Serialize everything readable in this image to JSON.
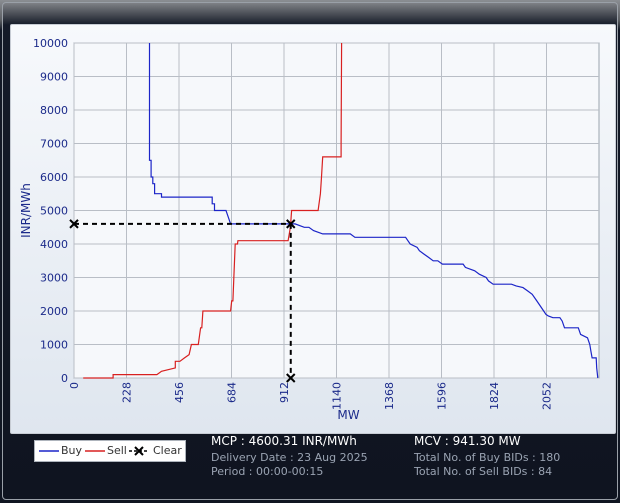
{
  "chart_data": {
    "type": "line",
    "xlabel": "MW",
    "ylabel": "INR/MWh",
    "xlim": [
      0,
      2280
    ],
    "ylim": [
      0,
      10000
    ],
    "x_ticks": [
      "0",
      "228",
      "456",
      "684",
      "912",
      "1140",
      "1368",
      "1596",
      "1824",
      "2052"
    ],
    "y_ticks": [
      "0",
      "1000",
      "2000",
      "3000",
      "4000",
      "5000",
      "6000",
      "7000",
      "8000",
      "9000",
      "10000"
    ],
    "grid": true,
    "series": [
      {
        "name": "Buy",
        "color": "#1c25c8",
        "points": [
          [
            328,
            10000
          ],
          [
            328,
            6500
          ],
          [
            335,
            6500
          ],
          [
            335,
            6000
          ],
          [
            342,
            6000
          ],
          [
            342,
            5800
          ],
          [
            350,
            5800
          ],
          [
            350,
            5500
          ],
          [
            380,
            5500
          ],
          [
            380,
            5400
          ],
          [
            480,
            5400
          ],
          [
            560,
            5400
          ],
          [
            600,
            5400
          ],
          [
            600,
            5200
          ],
          [
            610,
            5200
          ],
          [
            610,
            5000
          ],
          [
            660,
            5000
          ],
          [
            670,
            4800
          ],
          [
            680,
            4600
          ],
          [
            700,
            4600
          ],
          [
            900,
            4600
          ],
          [
            941,
            4600
          ],
          [
            960,
            4600
          ],
          [
            1000,
            4500
          ],
          [
            1020,
            4500
          ],
          [
            1040,
            4400
          ],
          [
            1080,
            4300
          ],
          [
            1200,
            4300
          ],
          [
            1220,
            4200
          ],
          [
            1360,
            4200
          ],
          [
            1440,
            4200
          ],
          [
            1450,
            4100
          ],
          [
            1460,
            4000
          ],
          [
            1490,
            3900
          ],
          [
            1500,
            3800
          ],
          [
            1520,
            3700
          ],
          [
            1540,
            3600
          ],
          [
            1560,
            3500
          ],
          [
            1580,
            3500
          ],
          [
            1600,
            3400
          ],
          [
            1690,
            3400
          ],
          [
            1700,
            3300
          ],
          [
            1740,
            3200
          ],
          [
            1760,
            3100
          ],
          [
            1790,
            3000
          ],
          [
            1800,
            2900
          ],
          [
            1820,
            2800
          ],
          [
            1900,
            2800
          ],
          [
            1920,
            2750
          ],
          [
            1950,
            2700
          ],
          [
            1970,
            2600
          ],
          [
            1990,
            2500
          ],
          [
            2010,
            2300
          ],
          [
            2030,
            2100
          ],
          [
            2050,
            1900
          ],
          [
            2060,
            1850
          ],
          [
            2080,
            1800
          ],
          [
            2110,
            1800
          ],
          [
            2120,
            1700
          ],
          [
            2130,
            1500
          ],
          [
            2190,
            1500
          ],
          [
            2200,
            1300
          ],
          [
            2230,
            1200
          ],
          [
            2240,
            1000
          ],
          [
            2245,
            800
          ],
          [
            2250,
            600
          ],
          [
            2268,
            600
          ],
          [
            2270,
            300
          ],
          [
            2275,
            0
          ]
        ]
      },
      {
        "name": "Sell",
        "color": "#d82020",
        "points": [
          [
            40,
            0
          ],
          [
            100,
            0
          ],
          [
            170,
            0
          ],
          [
            170,
            100
          ],
          [
            360,
            100
          ],
          [
            380,
            200
          ],
          [
            440,
            300
          ],
          [
            440,
            500
          ],
          [
            460,
            500
          ],
          [
            480,
            600
          ],
          [
            500,
            700
          ],
          [
            510,
            1000
          ],
          [
            540,
            1000
          ],
          [
            550,
            1500
          ],
          [
            555,
            1500
          ],
          [
            560,
            2000
          ],
          [
            680,
            2000
          ],
          [
            685,
            2300
          ],
          [
            690,
            2300
          ],
          [
            700,
            4000
          ],
          [
            710,
            4000
          ],
          [
            712,
            4100
          ],
          [
            930,
            4100
          ],
          [
            940,
            4500
          ],
          [
            945,
            5000
          ],
          [
            1060,
            5000
          ],
          [
            1070,
            5500
          ],
          [
            1075,
            6000
          ],
          [
            1080,
            6600
          ],
          [
            1160,
            6600
          ],
          [
            1160,
            7000
          ],
          [
            1162,
            10000
          ]
        ]
      },
      {
        "name": "Clear",
        "color": "#000000",
        "points": [
          [
            941.3,
            4600.31
          ]
        ]
      }
    ]
  },
  "legend": {
    "buy": "Buy",
    "sell": "Sell",
    "clear": "Clear"
  },
  "info": {
    "mcp": "MCP : 4600.31 INR/MWh",
    "mcv": "MCV : 941.30 MW",
    "delivery_date": "Delivery Date : 23 Aug 2025",
    "period": "Period :  00:00-00:15",
    "buy_bids": "Total No. of Buy BIDs : 180",
    "sell_bids": "Total No. of Sell BIDs : 84"
  }
}
